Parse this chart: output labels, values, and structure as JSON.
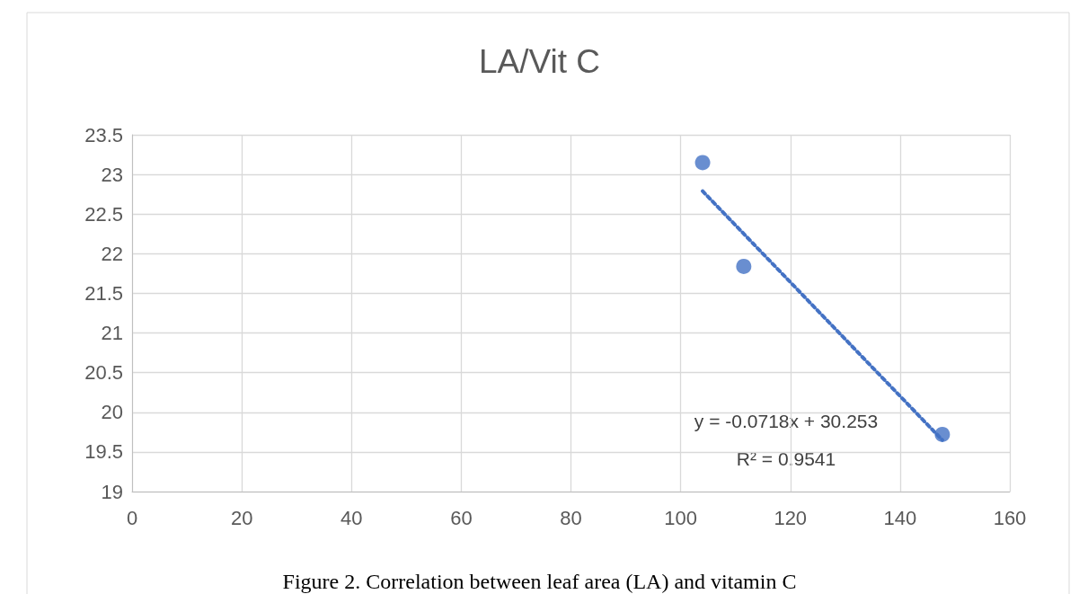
{
  "chart_data": {
    "type": "scatter",
    "title": "LA/Vit C",
    "series": [
      {
        "color": "#4472c4",
        "x": [
          104,
          111.5,
          147.7
        ],
        "values": [
          23.15,
          21.84,
          19.72
        ],
        "marker": "circle"
      },
      {
        "type": "line",
        "color": "#4472c4",
        "x": [
          104,
          147.7
        ],
        "values": [
          22.79,
          19.65
        ],
        "marker": "none",
        "line_style": "dotted"
      }
    ],
    "xlim": [
      0,
      160
    ],
    "xticks": [
      0,
      20,
      40,
      60,
      80,
      100,
      120,
      140,
      160
    ],
    "ylim": [
      19,
      23.5
    ],
    "yticks": [
      19,
      19.5,
      20,
      20.5,
      21,
      21.5,
      22,
      22.5,
      23,
      23.5
    ],
    "grid": true,
    "annotations": [
      "y = -0.0718x + 30.253",
      "R² = 0.9541",
      "Figure 2. Correlation between leaf area (LA) and vitamin C"
    ]
  }
}
